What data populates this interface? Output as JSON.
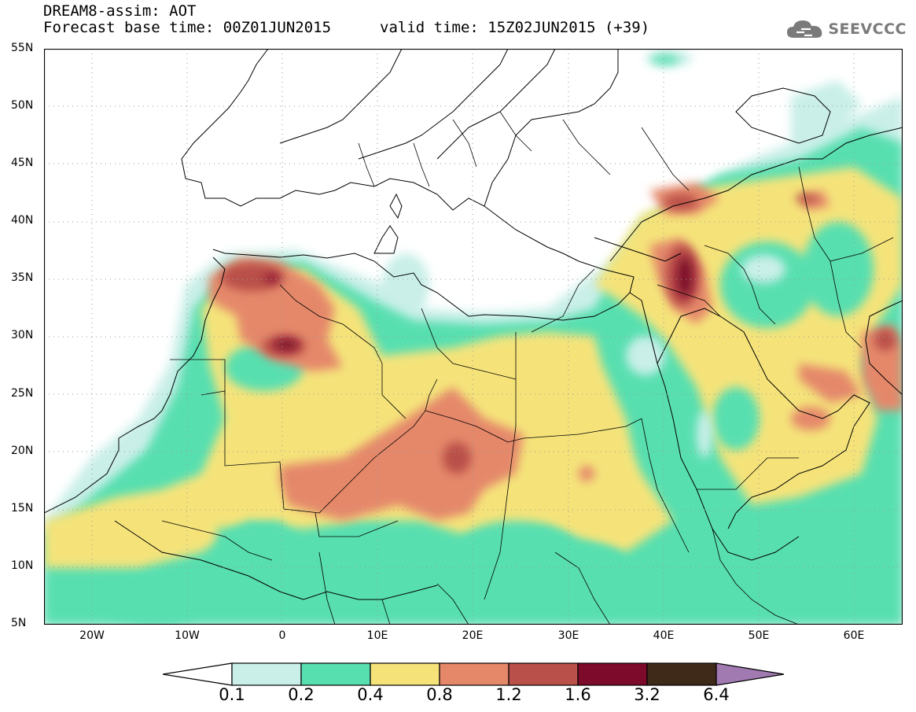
{
  "header": {
    "line1": "DREAM8-assim: AOT",
    "line2": "Forecast base time: 00Z01JUN2015",
    "valid": "valid time: 15Z02JUN2015 (+39)",
    "logo_text": "SEEVCCC",
    "logo_icon": "cloud-icon"
  },
  "map": {
    "lat_labels": [
      "55N",
      "50N",
      "45N",
      "40N",
      "35N",
      "30N",
      "25N",
      "20N",
      "15N",
      "10N",
      "5N"
    ],
    "lon_labels": [
      "20W",
      "10W",
      "0",
      "10E",
      "20E",
      "30E",
      "40E",
      "50E",
      "60E"
    ],
    "lon_range": [
      -25,
      65
    ],
    "lat_range": [
      5,
      55
    ]
  },
  "legend": {
    "levels": [
      "0.1",
      "0.2",
      "0.4",
      "0.8",
      "1.2",
      "1.6",
      "3.2",
      "6.4"
    ],
    "colors": [
      "#c9efe8",
      "#58dfb0",
      "#f5e37a",
      "#e5886a",
      "#b9504a",
      "#7d0a2a",
      "#3f2a1a",
      "#a07ab0"
    ]
  }
}
